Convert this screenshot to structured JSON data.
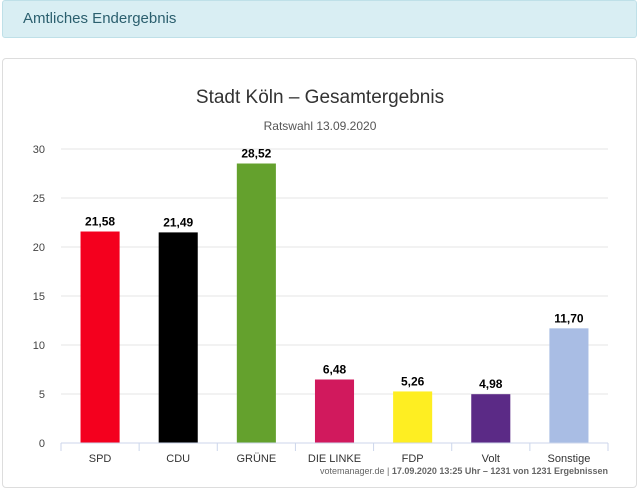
{
  "header": {
    "title": "Amtliches Endergebnis"
  },
  "footer": {
    "source": "votemanager.de",
    "separator": " | ",
    "status": "17.09.2020 13:25 Uhr – 1231 von 1231 Ergebnissen"
  },
  "chart_data": {
    "type": "bar",
    "title": "Stadt Köln – Gesamtergebnis",
    "subtitle": "Ratswahl 13.09.2020",
    "xlabel": "",
    "ylabel": "",
    "ylim": [
      0,
      30
    ],
    "yticks": [
      0,
      5,
      10,
      15,
      20,
      25,
      30
    ],
    "grid": true,
    "categories": [
      "SPD",
      "CDU",
      "GRÜNE",
      "DIE LINKE",
      "FDP",
      "Volt",
      "Sonstige"
    ],
    "values": [
      21.58,
      21.49,
      28.52,
      6.48,
      5.26,
      4.98,
      11.7
    ],
    "value_labels": [
      "21,58",
      "21,49",
      "28,52",
      "6,48",
      "5,26",
      "4,98",
      "11,70"
    ],
    "colors": [
      "#f4001e",
      "#000000",
      "#64a12d",
      "#d1195d",
      "#feee22",
      "#5b2a86",
      "#a9bde4"
    ]
  }
}
